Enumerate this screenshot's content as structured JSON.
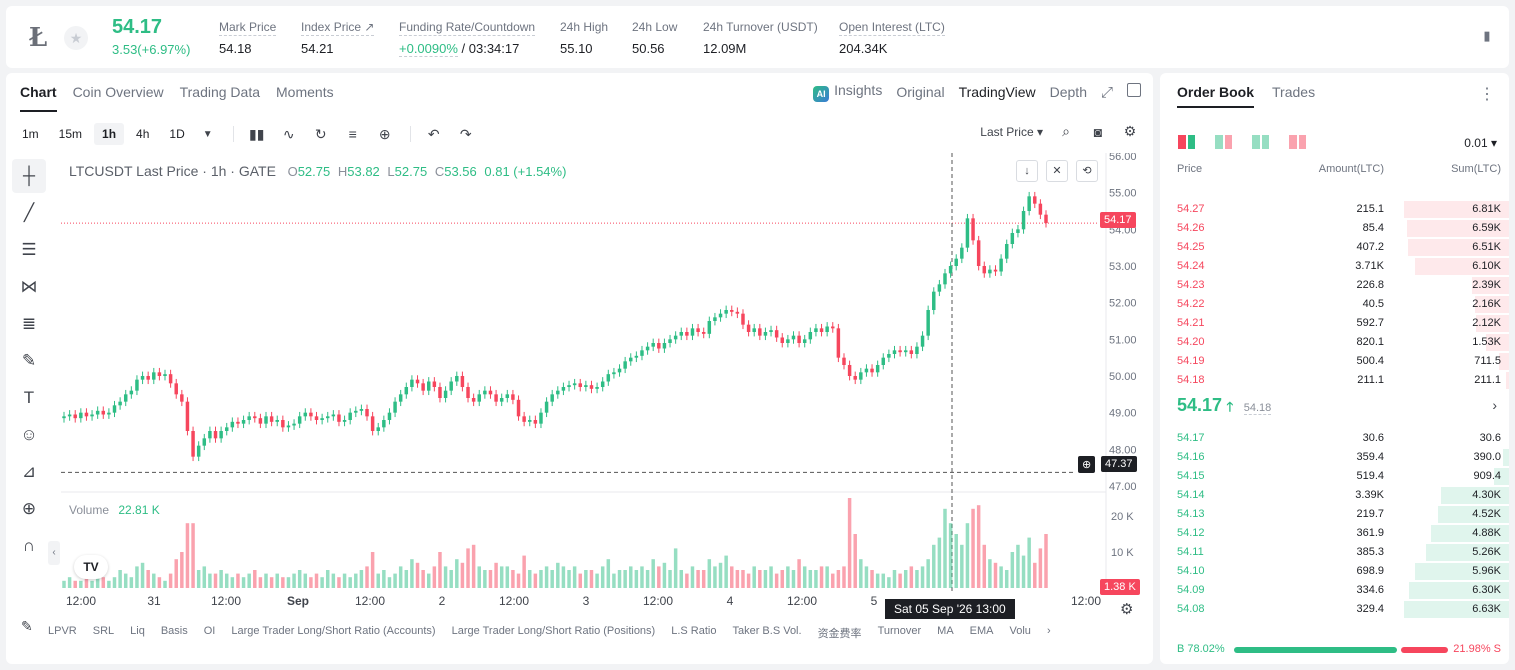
{
  "header": {
    "price": "54.17",
    "change": "3.53(+6.97%)",
    "stats": [
      {
        "label": "Mark Price",
        "value": "54.18"
      },
      {
        "label": "Index Price ↗",
        "value": "54.21"
      },
      {
        "label": "Funding Rate/Countdown",
        "value": "+0.0090%",
        "value2": " / 03:34:17"
      },
      {
        "label": "24h High",
        "value": "55.10"
      },
      {
        "label": "24h Low",
        "value": "50.56"
      },
      {
        "label": "24h Turnover (USDT)",
        "value": "12.09M"
      },
      {
        "label": "Open Interest (LTC)",
        "value": "204.34K"
      }
    ]
  },
  "chart_tabs": [
    "Chart",
    "Coin Overview",
    "Trading Data",
    "Moments"
  ],
  "view_tabs": [
    "Insights",
    "Original",
    "TradingView",
    "Depth"
  ],
  "intervals": [
    "1m",
    "15m",
    "1h",
    "4h",
    "1D"
  ],
  "last_price_selector": "Last Price ▾",
  "legend": {
    "symbol": "LTCUSDT Last Price · 1h · GATE",
    "o_label": "O",
    "o": "52.75",
    "h_label": "H",
    "h": "53.82",
    "l_label": "L",
    "l": "52.75",
    "c_label": "C",
    "c": "53.56",
    "chg": "0.81 (+1.54%)"
  },
  "volume_legend": {
    "label": "Volume",
    "value": "22.81 K"
  },
  "price_axis": [
    "56.00",
    "55.00",
    "54.00",
    "53.00",
    "52.00",
    "51.00",
    "50.00",
    "49.00",
    "48.00",
    "47.00"
  ],
  "volume_axis": [
    "20 K",
    "10 K"
  ],
  "time_axis": [
    "12:00",
    "31",
    "12:00",
    "Sep",
    "12:00",
    "2",
    "12:00",
    "3",
    "12:00",
    "4",
    "12:00",
    "5",
    "12:00"
  ],
  "current_price_label": "54.17",
  "crosshair_price_label": "47.37",
  "current_volume_label": "1.38 K",
  "crosshair_time_label": "Sat 05 Sep '26   13:00",
  "indicators": [
    "LPVR",
    "SRL",
    "Liq",
    "Basis",
    "OI",
    "Large Trader Long/Short Ratio (Accounts)",
    "Large Trader Long/Short Ratio (Positions)",
    "L.S Ratio",
    "Taker B.S Vol.",
    "资金费率",
    "Turnover",
    "MA",
    "EMA",
    "Volu"
  ],
  "chart_data": {
    "type": "candlestick",
    "symbol": "LTCUSDT",
    "interval": "1h",
    "ylim": [
      47.0,
      56.0
    ],
    "close": [
      48.9,
      48.95,
      48.85,
      49.0,
      48.9,
      48.95,
      49.05,
      48.95,
      49.0,
      49.2,
      49.3,
      49.5,
      49.6,
      49.9,
      50.0,
      49.9,
      50.1,
      50.0,
      50.05,
      49.8,
      49.5,
      49.3,
      48.5,
      47.8,
      48.1,
      48.3,
      48.5,
      48.3,
      48.5,
      48.6,
      48.75,
      48.7,
      48.8,
      48.9,
      48.85,
      48.7,
      48.9,
      48.75,
      48.8,
      48.6,
      48.65,
      48.7,
      48.9,
      49.0,
      48.9,
      48.8,
      48.85,
      48.9,
      48.95,
      48.75,
      48.8,
      49.0,
      49.05,
      49.1,
      48.9,
      48.5,
      48.6,
      48.8,
      49.0,
      49.3,
      49.5,
      49.7,
      49.9,
      49.8,
      49.6,
      49.85,
      49.7,
      49.4,
      49.6,
      49.85,
      50.0,
      49.7,
      49.4,
      49.3,
      49.5,
      49.6,
      49.5,
      49.3,
      49.4,
      49.5,
      49.35,
      48.9,
      48.75,
      48.8,
      48.7,
      49.0,
      49.3,
      49.5,
      49.6,
      49.7,
      49.75,
      49.8,
      49.7,
      49.75,
      49.65,
      49.7,
      49.85,
      50.05,
      50.1,
      50.2,
      50.4,
      50.5,
      50.55,
      50.7,
      50.8,
      50.9,
      50.75,
      50.9,
      51.0,
      51.1,
      51.2,
      51.1,
      51.3,
      51.2,
      51.15,
      51.5,
      51.6,
      51.7,
      51.8,
      51.75,
      51.7,
      51.4,
      51.2,
      51.3,
      51.1,
      51.2,
      51.25,
      51.05,
      50.9,
      51.0,
      51.1,
      50.9,
      51.0,
      51.2,
      51.3,
      51.2,
      51.35,
      51.3,
      50.5,
      50.3,
      50.0,
      49.9,
      50.1,
      50.2,
      50.1,
      50.3,
      50.5,
      50.6,
      50.7,
      50.65,
      50.7,
      50.6,
      50.8,
      51.1,
      51.8,
      52.3,
      52.5,
      52.8,
      53.0,
      53.2,
      53.5,
      54.3,
      53.7,
      53.0,
      52.8,
      52.9,
      52.85,
      53.2,
      53.6,
      53.9,
      54.0,
      54.5,
      54.9,
      54.7,
      54.4,
      54.17
    ],
    "volume_k": [
      2,
      3,
      2,
      2,
      3,
      2,
      4,
      3,
      2,
      3,
      5,
      4,
      3,
      6,
      7,
      5,
      4,
      3,
      2,
      4,
      8,
      10,
      18,
      18,
      5,
      6,
      4,
      4,
      5,
      4,
      3,
      4,
      3,
      4,
      5,
      3,
      4,
      3,
      4,
      3,
      3,
      4,
      5,
      4,
      3,
      4,
      3,
      5,
      4,
      3,
      4,
      3,
      4,
      5,
      6,
      10,
      4,
      5,
      3,
      4,
      6,
      5,
      8,
      7,
      5,
      4,
      6,
      10,
      6,
      5,
      8,
      7,
      11,
      12,
      6,
      5,
      5,
      7,
      6,
      6,
      5,
      4,
      9,
      5,
      4,
      5,
      6,
      5,
      7,
      6,
      5,
      6,
      4,
      5,
      5,
      4,
      6,
      8,
      4,
      5,
      5,
      6,
      5,
      6,
      5,
      8,
      6,
      7,
      5,
      11,
      5,
      4,
      6,
      5,
      5,
      8,
      6,
      7,
      9,
      6,
      5,
      5,
      4,
      6,
      5,
      5,
      6,
      4,
      5,
      6,
      5,
      8,
      6,
      5,
      5,
      6,
      6,
      4,
      5,
      6,
      25,
      15,
      8,
      6,
      5,
      4,
      4,
      3,
      5,
      4,
      5,
      6,
      5,
      6,
      8,
      12,
      14,
      22,
      18,
      15,
      12,
      18,
      22,
      23,
      12,
      8,
      7,
      6,
      5,
      10,
      12,
      9,
      14,
      7,
      11,
      15,
      13,
      5,
      3,
      1.38
    ]
  },
  "order_book": {
    "tabs": [
      "Order Book",
      "Trades"
    ],
    "precision": "0.01 ▾",
    "headers": [
      "Price",
      "Amount(LTC)",
      "Sum(LTC)"
    ],
    "asks": [
      {
        "price": "54.27",
        "amount": "215.1",
        "sum": "6.81K",
        "depth": 1.0
      },
      {
        "price": "54.26",
        "amount": "85.4",
        "sum": "6.59K",
        "depth": 0.97
      },
      {
        "price": "54.25",
        "amount": "407.2",
        "sum": "6.51K",
        "depth": 0.96
      },
      {
        "price": "54.24",
        "amount": "3.71K",
        "sum": "6.10K",
        "depth": 0.9
      },
      {
        "price": "54.23",
        "amount": "226.8",
        "sum": "2.39K",
        "depth": 0.35
      },
      {
        "price": "54.22",
        "amount": "40.5",
        "sum": "2.16K",
        "depth": 0.32
      },
      {
        "price": "54.21",
        "amount": "592.7",
        "sum": "2.12K",
        "depth": 0.31
      },
      {
        "price": "54.20",
        "amount": "820.1",
        "sum": "1.53K",
        "depth": 0.22
      },
      {
        "price": "54.19",
        "amount": "500.4",
        "sum": "711.5",
        "depth": 0.1
      },
      {
        "price": "54.18",
        "amount": "211.1",
        "sum": "211.1",
        "depth": 0.03
      }
    ],
    "mid_price": "54.17",
    "mid_arrow": "🡑",
    "mark_price": "54.18",
    "bids": [
      {
        "price": "54.17",
        "amount": "30.6",
        "sum": "30.6",
        "depth": 0.0
      },
      {
        "price": "54.16",
        "amount": "359.4",
        "sum": "390.0",
        "depth": 0.06
      },
      {
        "price": "54.15",
        "amount": "519.4",
        "sum": "909.4",
        "depth": 0.14
      },
      {
        "price": "54.14",
        "amount": "3.39K",
        "sum": "4.30K",
        "depth": 0.65
      },
      {
        "price": "54.13",
        "amount": "219.7",
        "sum": "4.52K",
        "depth": 0.68
      },
      {
        "price": "54.12",
        "amount": "361.9",
        "sum": "4.88K",
        "depth": 0.74
      },
      {
        "price": "54.11",
        "amount": "385.3",
        "sum": "5.26K",
        "depth": 0.79
      },
      {
        "price": "54.10",
        "amount": "698.9",
        "sum": "5.96K",
        "depth": 0.9
      },
      {
        "price": "54.09",
        "amount": "334.6",
        "sum": "6.30K",
        "depth": 0.95
      },
      {
        "price": "54.08",
        "amount": "329.4",
        "sum": "6.63K",
        "depth": 1.0
      }
    ],
    "buy_ratio": "B 78.02%",
    "sell_ratio": "21.98% S"
  },
  "colors": {
    "up": "#2ebd85",
    "down": "#f6465d"
  }
}
